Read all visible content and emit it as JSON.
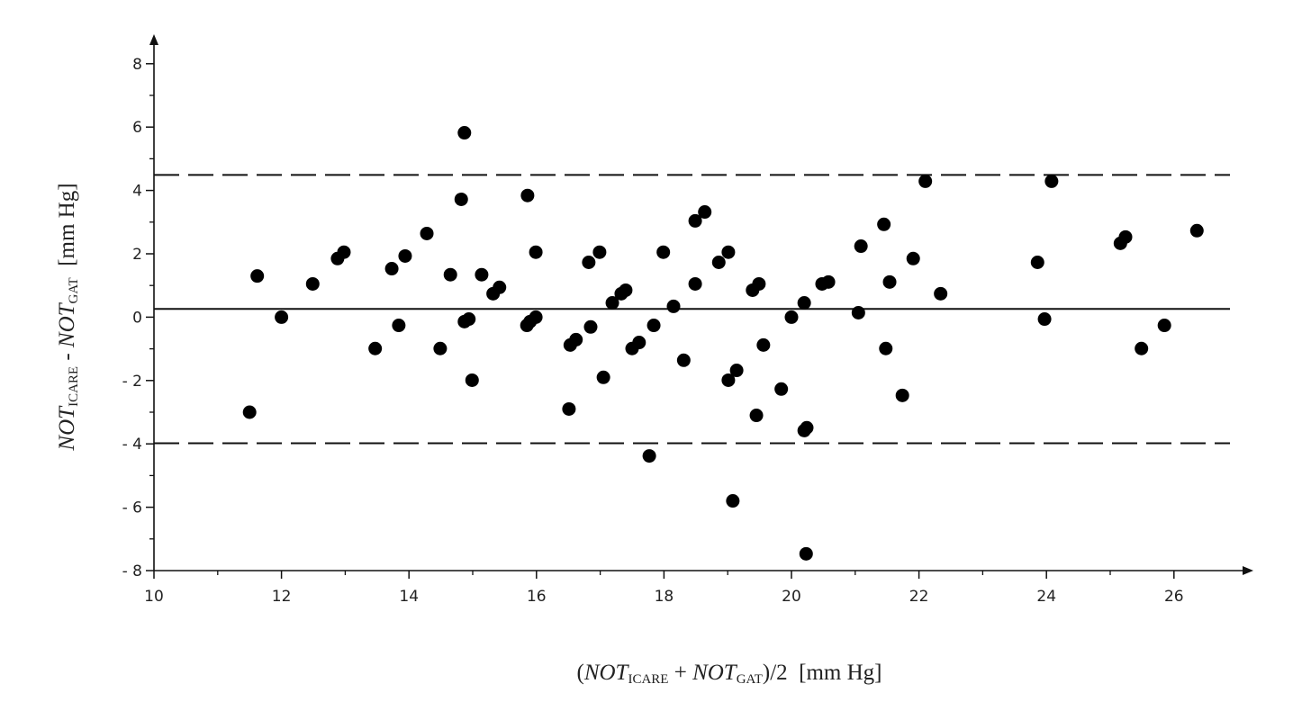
{
  "chart_data": {
    "type": "scatter",
    "x_label_parts": [
      "(",
      "NOT",
      "ICARE",
      " + ",
      "NOT",
      "GAT",
      ")/2  [mm Hg]"
    ],
    "y_label_parts": [
      "NOT",
      "ICARE",
      " - ",
      "NOT",
      "GAT",
      "  [mm Hg]"
    ],
    "color": "#000000",
    "x": [
      11.5,
      11.62,
      12.0,
      12.49,
      12.88,
      12.98,
      13.47,
      13.73,
      13.84,
      13.94,
      14.28,
      14.49,
      14.65,
      14.82,
      14.87,
      14.87,
      14.94,
      14.99,
      15.14,
      15.32,
      15.42,
      15.86,
      15.85,
      15.9,
      15.99,
      15.99,
      16.51,
      16.53,
      16.62,
      16.82,
      16.85,
      16.99,
      17.05,
      17.19,
      17.33,
      17.4,
      17.5,
      17.61,
      17.84,
      17.77,
      17.99,
      18.15,
      18.31,
      18.49,
      18.49,
      18.64,
      18.86,
      19.01,
      19.01,
      19.08,
      19.14,
      19.39,
      19.49,
      19.45,
      19.56,
      19.84,
      20.0,
      20.2,
      20.2,
      20.24,
      20.23,
      20.48,
      20.58,
      21.05,
      21.09,
      21.45,
      21.48,
      21.54,
      21.74,
      21.91,
      22.1,
      22.34,
      23.86,
      23.97,
      24.08,
      25.16,
      25.24,
      25.49,
      25.85,
      26.36
    ],
    "values": [
      -3.0,
      1.3,
      0,
      1.05,
      1.85,
      2.05,
      -0.99,
      1.53,
      -0.26,
      1.93,
      2.64,
      -0.99,
      1.34,
      3.72,
      5.82,
      -0.14,
      -0.06,
      -1.99,
      1.34,
      0.74,
      0.94,
      3.84,
      -0.26,
      -0.14,
      0,
      2.05,
      -2.9,
      -0.88,
      -0.71,
      1.73,
      -0.31,
      2.05,
      -1.9,
      0.45,
      0.74,
      0.85,
      -0.99,
      -0.8,
      -0.26,
      -4.38,
      2.05,
      0.34,
      -1.36,
      1.05,
      3.04,
      3.32,
      1.73,
      2.05,
      -1.99,
      -5.8,
      -1.68,
      0.85,
      1.05,
      -3.1,
      -0.88,
      -2.27,
      0,
      0.45,
      -3.58,
      -3.49,
      -7.47,
      1.05,
      1.11,
      0.14,
      2.24,
      2.93,
      -0.99,
      1.11,
      -2.47,
      1.85,
      4.29,
      0.74,
      1.73,
      -0.06,
      4.29,
      2.33,
      2.53,
      -0.99,
      -0.26,
      2.73
    ],
    "reference_lines": [
      {
        "value": 4.49,
        "style": "dashed"
      },
      {
        "value": 0.26,
        "style": "solid"
      },
      {
        "value": -3.98,
        "style": "dashed"
      }
    ],
    "xlim": [
      10,
      27.2
    ],
    "ylim": [
      -8,
      8.8
    ],
    "xticks": [
      10,
      12,
      14,
      16,
      18,
      20,
      22,
      24,
      26
    ],
    "xminorticks": [
      11,
      13,
      15,
      17,
      19,
      21,
      23,
      25
    ],
    "yticks": [
      {
        "value": -8,
        "label": "- 8"
      },
      {
        "value": -6,
        "label": "- 6"
      },
      {
        "value": -4,
        "label": "- 4"
      },
      {
        "value": -2,
        "label": "- 2"
      },
      0,
      2,
      4,
      6,
      8
    ],
    "yminorticks": [
      -7,
      -5,
      -3,
      -1,
      1,
      3,
      5,
      7
    ]
  }
}
